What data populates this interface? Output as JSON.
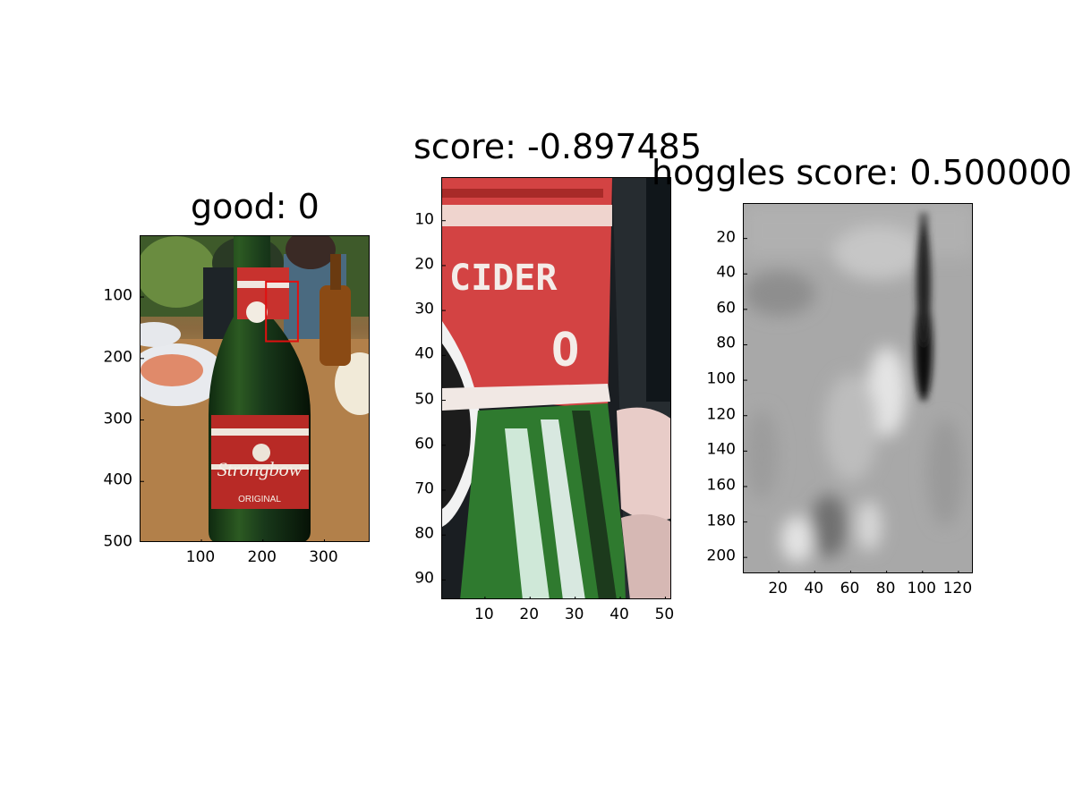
{
  "chart_data": [
    {
      "type": "image",
      "title": "good: 0",
      "content": "photo of a green Strongbow cider bottle on a table with a red detection box near the label",
      "xlim": [
        1,
        375
      ],
      "ylim": [
        1,
        500
      ],
      "xticks": [
        100,
        200,
        300
      ],
      "yticks": [
        100,
        200,
        300,
        400,
        500
      ],
      "box": {
        "x1": 205,
        "y1": 75,
        "x2": 257,
        "y2": 172,
        "color": "#e01010"
      }
    },
    {
      "type": "image",
      "title": "score: -0.897485",
      "content": "zoomed pixelated crop of the bottle label showing the word CIDER",
      "xlim": [
        0.5,
        51.5
      ],
      "ylim": [
        0.5,
        94.5
      ],
      "xticks": [
        10,
        20,
        30,
        40,
        50
      ],
      "yticks": [
        10,
        20,
        30,
        40,
        50,
        60,
        70,
        80,
        90
      ]
    },
    {
      "type": "heatmap",
      "title": "hoggles score: 0.500000",
      "content": "grayscale HOG inverse visualization with dark vertical streak",
      "xlim": [
        0.5,
        128.5
      ],
      "ylim": [
        0.5,
        209.5
      ],
      "xticks": [
        20,
        40,
        60,
        80,
        100,
        120
      ],
      "yticks": [
        20,
        40,
        60,
        80,
        100,
        120,
        140,
        160,
        180,
        200
      ]
    }
  ],
  "colors": {
    "box": "#e01010",
    "axes": "#000000"
  }
}
